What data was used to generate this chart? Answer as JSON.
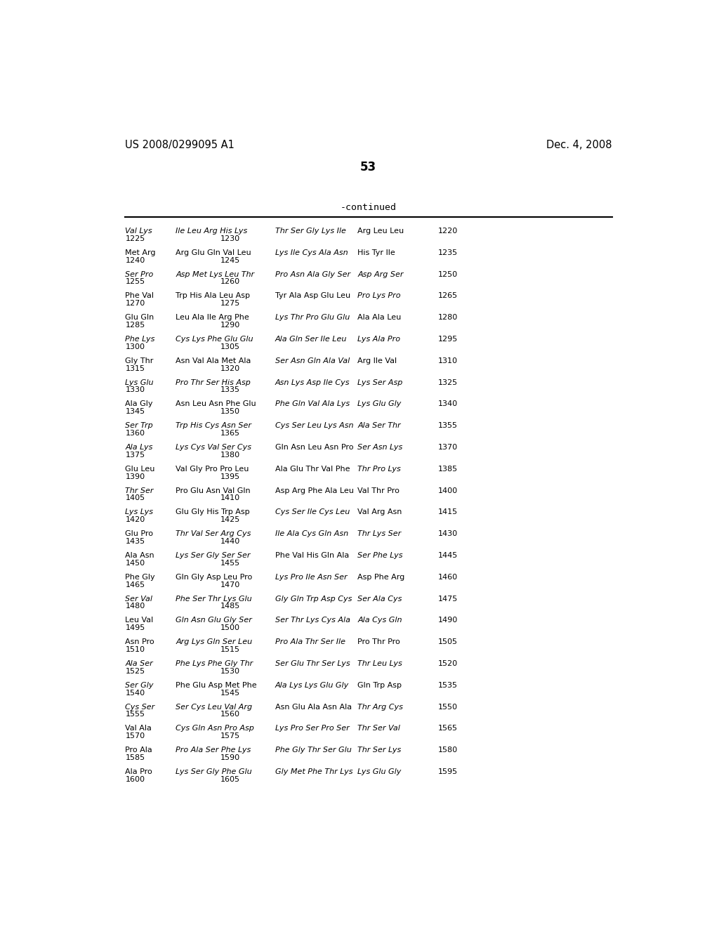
{
  "header_left": "US 2008/0299095 A1",
  "header_right": "Dec. 4, 2008",
  "page_number": "53",
  "continued_label": "-continued",
  "background_color": "#ffffff",
  "text_color": "#000000",
  "sequence_rows": [
    [
      "Val Lys",
      "Ile Leu Arg His Lys",
      "Thr Ser Gly Lys Ile",
      "Arg Leu Leu",
      "1220",
      "1225",
      "1230"
    ],
    [
      "Met Arg",
      "Arg Glu Gln Val Leu",
      "Lys Ile Cys Ala Asn",
      "His Tyr Ile",
      "1235",
      "1240",
      "1245"
    ],
    [
      "Ser Pro",
      "Asp Met Lys Leu Thr",
      "Pro Asn Ala Gly Ser",
      "Asp Arg Ser",
      "1250",
      "1255",
      "1260"
    ],
    [
      "Phe Val",
      "Trp His Ala Leu Asp",
      "Tyr Ala Asp Glu Leu",
      "Pro Lys Pro",
      "1265",
      "1270",
      "1275"
    ],
    [
      "Glu Gln",
      "Leu Ala Ile Arg Phe",
      "Lys Thr Pro Glu Glu",
      "Ala Ala Leu",
      "1280",
      "1285",
      "1290"
    ],
    [
      "Phe Lys",
      "Cys Lys Phe Glu Glu",
      "Ala Gln Ser Ile Leu",
      "Lys Ala Pro",
      "1295",
      "1300",
      "1305"
    ],
    [
      "Gly Thr",
      "Asn Val Ala Met Ala",
      "Ser Asn Gln Ala Val",
      "Arg Ile Val",
      "1310",
      "1315",
      "1320"
    ],
    [
      "Lys Glu",
      "Pro Thr Ser His Asp",
      "Asn Lys Asp Ile Cys",
      "Lys Ser Asp",
      "1325",
      "1330",
      "1335"
    ],
    [
      "Ala Gly",
      "Asn Leu Asn Phe Glu",
      "Phe Gln Val Ala Lys",
      "Lys Glu Gly",
      "1340",
      "1345",
      "1350"
    ],
    [
      "Ser Trp",
      "Trp His Cys Asn Ser",
      "Cys Ser Leu Lys Asn",
      "Ala Ser Thr",
      "1355",
      "1360",
      "1365"
    ],
    [
      "Ala Lys",
      "Lys Cys Val Ser Cys",
      "Gln Asn Leu Asn Pro",
      "Ser Asn Lys",
      "1370",
      "1375",
      "1380"
    ],
    [
      "Glu Leu",
      "Val Gly Pro Pro Leu",
      "Ala Glu Thr Val Phe",
      "Thr Pro Lys",
      "1385",
      "1390",
      "1395"
    ],
    [
      "Thr Ser",
      "Pro Glu Asn Val Gln",
      "Asp Arg Phe Ala Leu",
      "Val Thr Pro",
      "1400",
      "1405",
      "1410"
    ],
    [
      "Lys Lys",
      "Glu Gly His Trp Asp",
      "Cys Ser Ile Cys Leu",
      "Val Arg Asn",
      "1415",
      "1420",
      "1425"
    ],
    [
      "Glu Pro",
      "Thr Val Ser Arg Cys",
      "Ile Ala Cys Gln Asn",
      "Thr Lys Ser",
      "1430",
      "1435",
      "1440"
    ],
    [
      "Ala Asn",
      "Lys Ser Gly Ser Ser",
      "Phe Val His Gln Ala",
      "Ser Phe Lys",
      "1445",
      "1450",
      "1455"
    ],
    [
      "Phe Gly",
      "Gln Gly Asp Leu Pro",
      "Lys Pro Ile Asn Ser",
      "Asp Phe Arg",
      "1460",
      "1465",
      "1470"
    ],
    [
      "Ser Val",
      "Phe Ser Thr Lys Glu",
      "Gly Gln Trp Asp Cys",
      "Ser Ala Cys",
      "1475",
      "1480",
      "1485"
    ],
    [
      "Leu Val",
      "Gln Asn Glu Gly Ser",
      "Ser Thr Lys Cys Ala",
      "Ala Cys Gln",
      "1490",
      "1495",
      "1500"
    ],
    [
      "Asn Pro",
      "Arg Lys Gln Ser Leu",
      "Pro Ala Thr Ser Ile",
      "Pro Thr Pro",
      "1505",
      "1510",
      "1515"
    ],
    [
      "Ala Ser",
      "Phe Lys Phe Gly Thr",
      "Ser Glu Thr Ser Lys",
      "Thr Leu Lys",
      "1520",
      "1525",
      "1530"
    ],
    [
      "Ser Gly",
      "Phe Glu Asp Met Phe",
      "Ala Lys Lys Glu Gly",
      "Gln Trp Asp",
      "1535",
      "1540",
      "1545"
    ],
    [
      "Cys Ser",
      "Ser Cys Leu Val Arg",
      "Asn Glu Ala Asn Ala",
      "Thr Arg Cys",
      "1550",
      "1555",
      "1560"
    ],
    [
      "Val Ala",
      "Cys Gln Asn Pro Asp",
      "Lys Pro Ser Pro Ser",
      "Thr Ser Val",
      "1565",
      "1570",
      "1575"
    ],
    [
      "Pro Ala",
      "Pro Ala Ser Phe Lys",
      "Phe Gly Thr Ser Glu",
      "Thr Ser Lys",
      "1580",
      "1585",
      "1590"
    ],
    [
      "Ala Pro",
      "Lys Ser Gly Phe Glu",
      "Gly Met Phe Thr Lys",
      "Lys Glu Gly",
      "1595",
      "1600",
      "1605"
    ]
  ],
  "italic_words": [
    "Lys",
    "Cys",
    "Ser"
  ]
}
